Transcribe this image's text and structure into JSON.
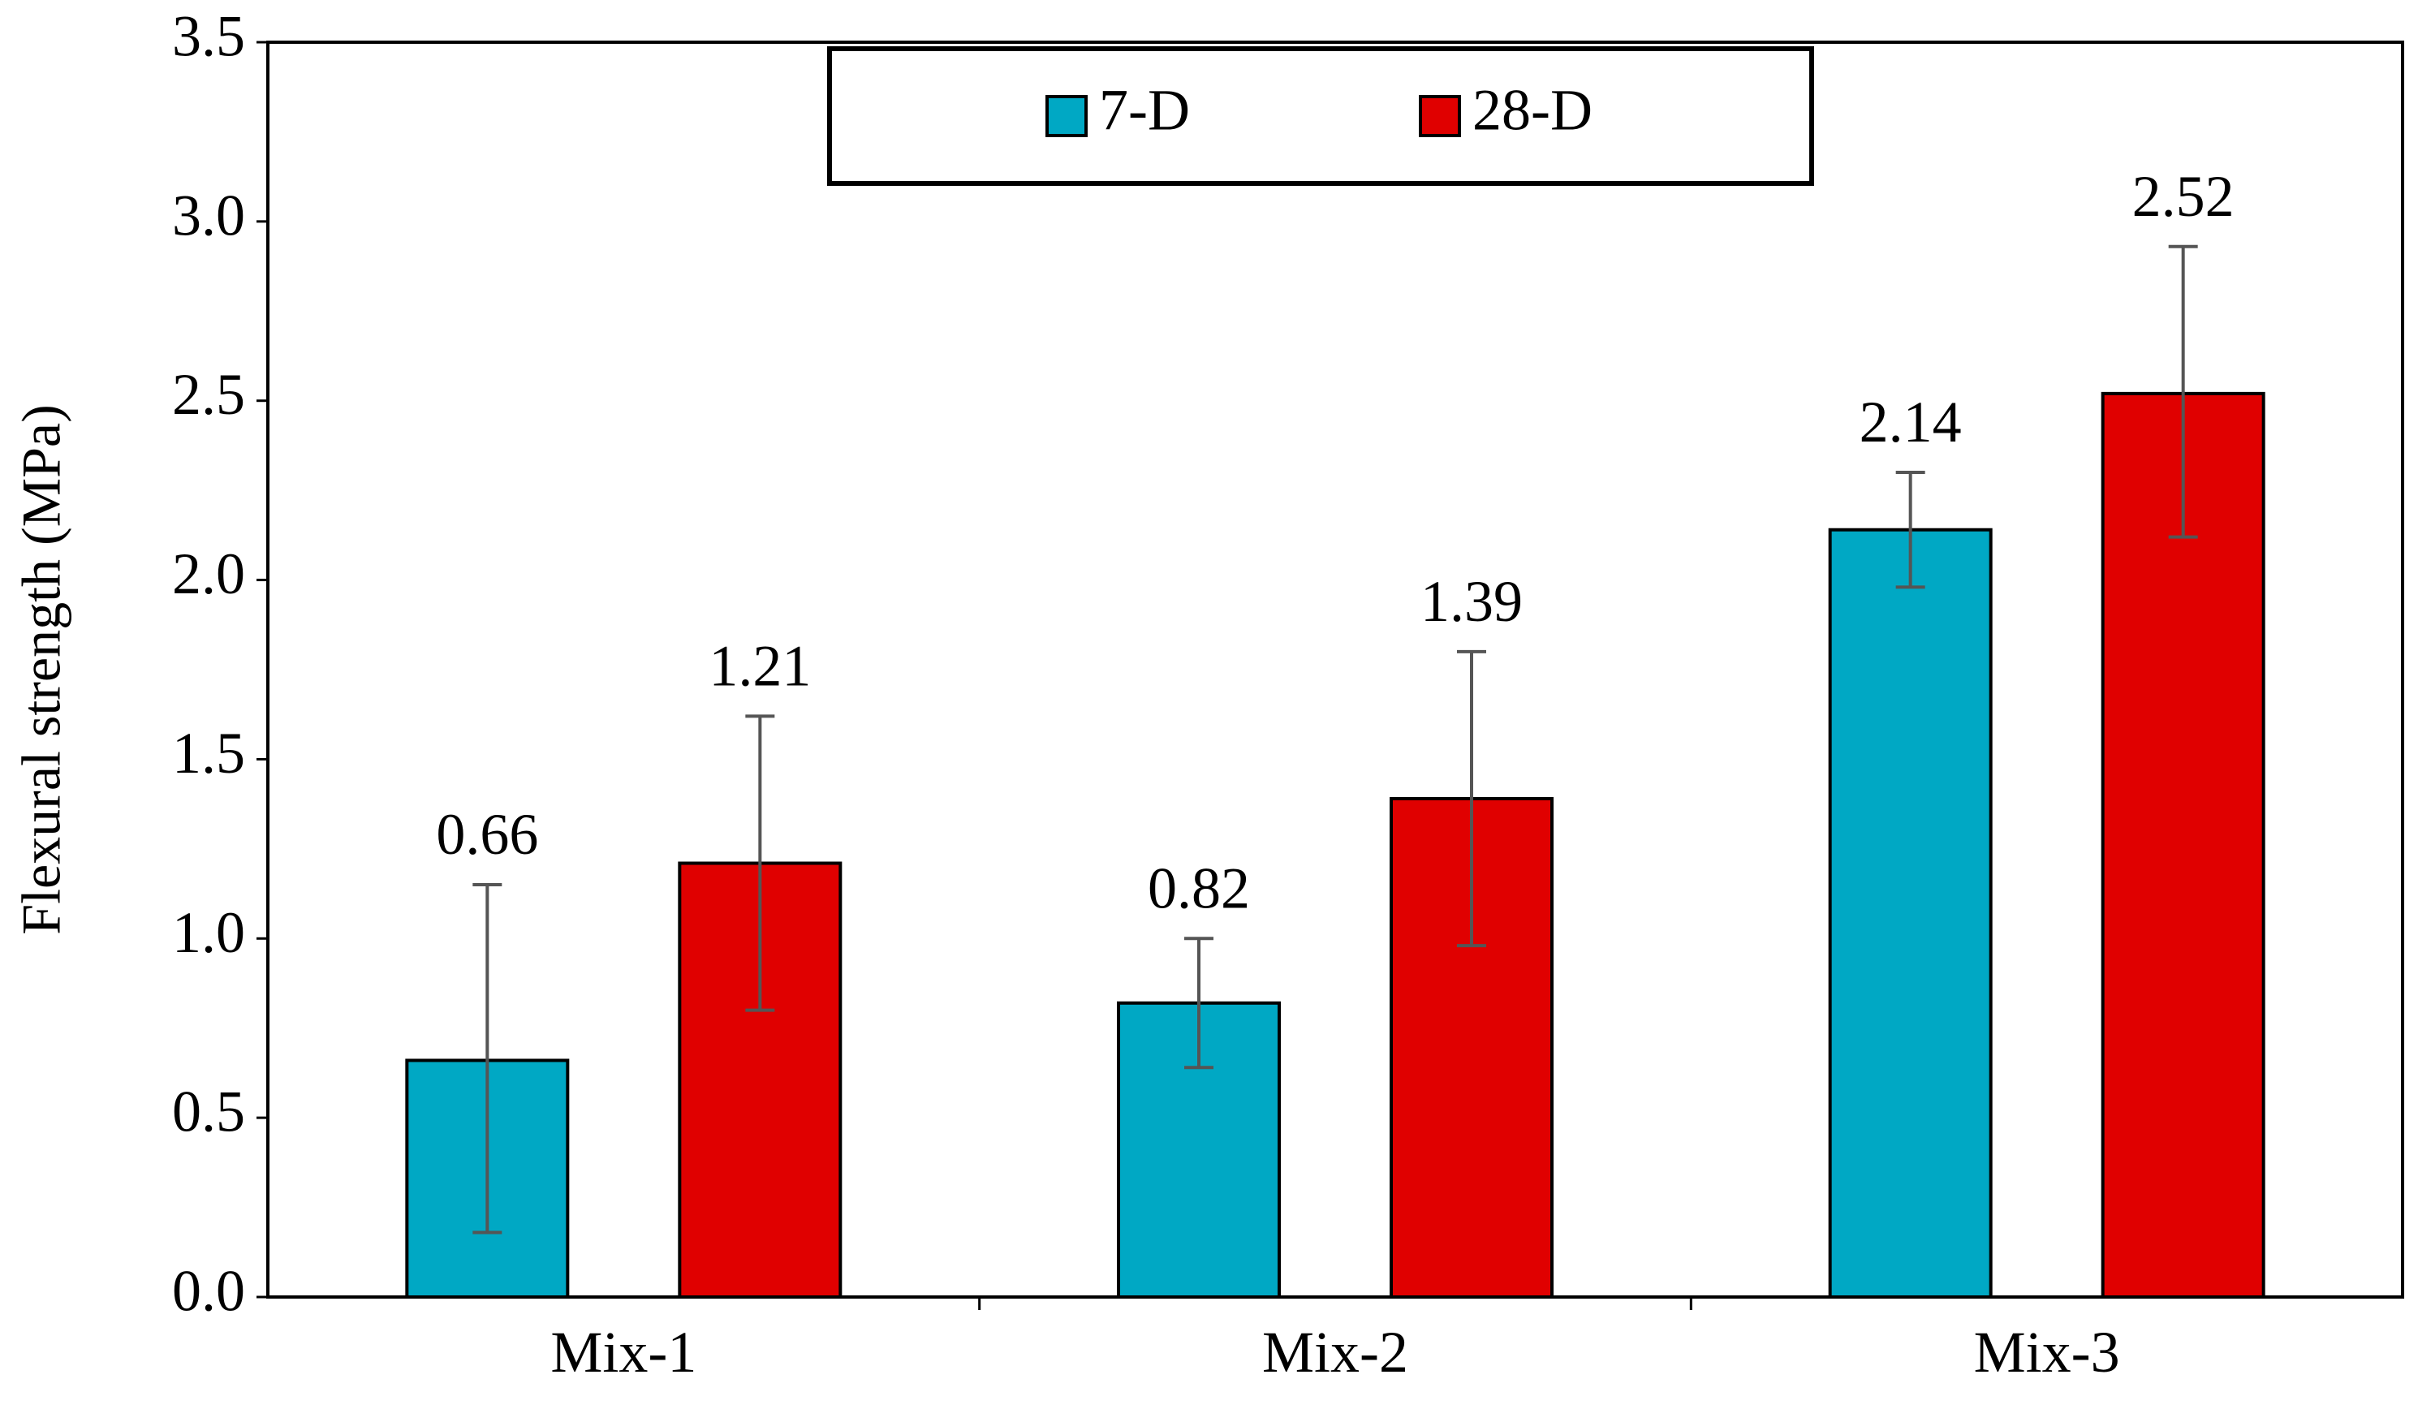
{
  "chart_data": {
    "type": "bar",
    "title": "",
    "xlabel": "",
    "ylabel": "Flexural strength (MPa)",
    "ylim": [
      0,
      3.5
    ],
    "yticks": [
      0.0,
      0.5,
      1.0,
      1.5,
      2.0,
      2.5,
      3.0,
      3.5
    ],
    "ytick_labels": [
      "0.0",
      "0.5",
      "1.0",
      "1.5",
      "2.0",
      "2.5",
      "3.0",
      "3.5"
    ],
    "categories": [
      "Mix-1",
      "Mix-2",
      "Mix-3"
    ],
    "grid": false,
    "legend_position": "top-center",
    "series": [
      {
        "name": "7-D",
        "color": "#00A8C4",
        "values": [
          0.66,
          0.82,
          2.14
        ],
        "value_labels": [
          "0.66",
          "0.82",
          "2.14"
        ],
        "error_low": [
          0.18,
          0.64,
          1.98
        ],
        "error_high": [
          1.15,
          1.0,
          2.3
        ]
      },
      {
        "name": "28-D",
        "color": "#E00000",
        "values": [
          1.21,
          1.39,
          2.52
        ],
        "value_labels": [
          "1.21",
          "1.39",
          "2.52"
        ],
        "error_low": [
          0.8,
          0.98,
          2.12
        ],
        "error_high": [
          1.62,
          1.8,
          2.93
        ]
      }
    ]
  }
}
